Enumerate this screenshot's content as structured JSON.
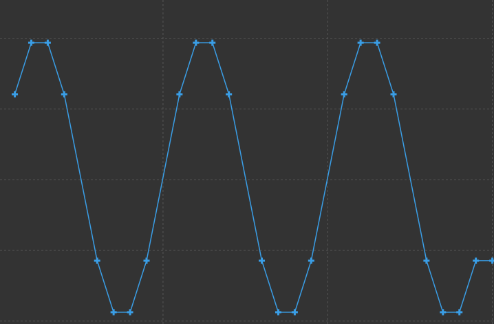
{
  "chart_data": {
    "type": "line",
    "title": "",
    "xlabel": "",
    "ylabel": "",
    "grid": true,
    "legend": "none",
    "colors": {
      "background": "#333333",
      "grid": "#555555",
      "series": "#3a9ee6"
    },
    "marker": "plus",
    "xlim": [
      -0.9,
      29.1
    ],
    "ylim": [
      -1.06,
      1.14
    ],
    "gridlines_x": [
      9,
      19,
      29
    ],
    "gridlines_y": [
      -1.04,
      -0.56,
      -0.08,
      0.4,
      0.88
    ],
    "series": [
      {
        "x": [
          0,
          1,
          2,
          3,
          5,
          6,
          7,
          8,
          10,
          11,
          12,
          13,
          15,
          16,
          17,
          18,
          20,
          21,
          22,
          23,
          25,
          26,
          27,
          28,
          29
        ],
        "y": [
          0.5,
          0.85,
          0.85,
          0.5,
          -0.63,
          -0.98,
          -0.98,
          -0.63,
          0.5,
          0.85,
          0.85,
          0.5,
          -0.63,
          -0.98,
          -0.98,
          -0.63,
          0.5,
          0.85,
          0.85,
          0.5,
          -0.63,
          -0.98,
          -0.98,
          -0.63,
          -0.63
        ]
      }
    ]
  }
}
